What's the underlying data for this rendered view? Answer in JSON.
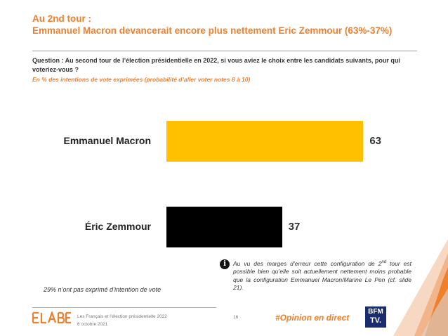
{
  "header": {
    "title_line1": "Au 2nd tour :",
    "title_line2": "Emmanuel Macron devancerait encore plus nettement Eric Zemmour (63%-37%)"
  },
  "question": {
    "text": "Question : Au second tour de l’élection présidentielle en 2022, si vous aviez le choix entre les candidats suivants, pour qui voteriez-vous ?",
    "subtitle": "En % des intentions de vote exprimées (probabilité d’aller voter notes 8 à 10)"
  },
  "chart_data": {
    "type": "bar",
    "orientation": "horizontal",
    "categories": [
      "Emmanuel Macron",
      "Éric Zemmour"
    ],
    "values": [
      63,
      37
    ],
    "colors": [
      "#ffc000",
      "#000000"
    ],
    "xlim": [
      0,
      100
    ],
    "grid": false
  },
  "note": {
    "icon": "info-icon",
    "text_part1": "Au vu des marges d’erreur cette configuration de 2",
    "superscript": "nd",
    "text_part2": " tour est possible bien qu’elle soit actuellement nettement moins probable que la configuration Emmanuel Macron/Marine Le Pen (cf. slide 21)."
  },
  "abstain_note": "29% n’ont pas exprimé d’intention de vote",
  "footer": {
    "logo": "ELABE",
    "survey_title": "Les Français et l’élection présidentielle 2022",
    "date": "6 octobre 2021",
    "page": "16",
    "hashtag": "#Opinion en direct",
    "partner_top": "BFM",
    "partner_bottom": "TV."
  },
  "colors": {
    "accent": "#ee7f2d",
    "macron": "#ffc000",
    "zemmour": "#000000",
    "partner": "#1a2c6e"
  }
}
